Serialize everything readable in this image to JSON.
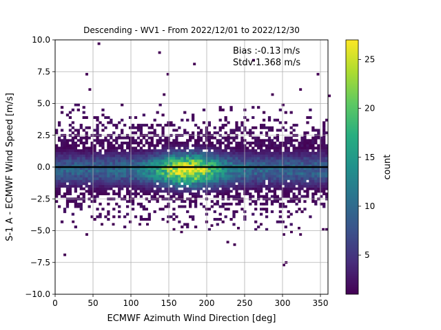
{
  "chart_data": {
    "type": "heatmap",
    "title": "Descending - WV1 - From 2022/12/01 to 2022/12/30",
    "xlabel": "ECMWF Azimuth Wind Direction [deg]",
    "ylabel": "S-1 A - ECMWF Wind Speed [m/s]",
    "xlim": [
      0,
      360
    ],
    "ylim": [
      -10,
      10
    ],
    "xticks": [
      "0",
      "50",
      "100",
      "150",
      "200",
      "250",
      "300",
      "350"
    ],
    "yticks": [
      "−10.0",
      "−7.5",
      "−5.0",
      "−2.5",
      "0.0",
      "2.5",
      "5.0",
      "7.5",
      "10.0"
    ],
    "grid": true,
    "colormap": "viridis",
    "colorbar": {
      "label": "count",
      "range": [
        1,
        27
      ],
      "ticks": [
        "5",
        "10",
        "15",
        "20",
        "25"
      ]
    },
    "reference_line": {
      "y": 0.0,
      "color": "#000000"
    },
    "annotation": {
      "line1": "Bias :-0.13 m/s",
      "line2": "Stdv:1.368 m/s"
    },
    "bin_size": {
      "x": 3.6,
      "y": 0.2
    },
    "density_peak": {
      "x": 175,
      "y": -0.2,
      "max_count": 27
    },
    "outliers": [
      {
        "x": 56,
        "y": 9.6
      },
      {
        "x": 136,
        "y": 8.9
      },
      {
        "x": 182,
        "y": 8.0
      },
      {
        "x": 260,
        "y": 8.3
      },
      {
        "x": 345,
        "y": 7.2
      },
      {
        "x": 40,
        "y": 7.2
      },
      {
        "x": 147,
        "y": 7.2
      },
      {
        "x": 142,
        "y": 5.6
      },
      {
        "x": 44,
        "y": 6.0
      },
      {
        "x": 322,
        "y": 6.0
      },
      {
        "x": 285,
        "y": 5.6
      },
      {
        "x": 360,
        "y": 5.5
      },
      {
        "x": 11,
        "y": -7.0
      },
      {
        "x": 303,
        "y": -7.6
      },
      {
        "x": 300,
        "y": -7.8
      },
      {
        "x": 226,
        "y": -6.0
      },
      {
        "x": 235,
        "y": -6.2
      },
      {
        "x": 40,
        "y": -5.4
      },
      {
        "x": 300,
        "y": -5.4
      },
      {
        "x": 22,
        "y": -4.4
      },
      {
        "x": 60,
        "y": -4.6
      },
      {
        "x": 75,
        "y": -4.6
      },
      {
        "x": 110,
        "y": -4.6
      },
      {
        "x": 120,
        "y": -4.6
      },
      {
        "x": 147,
        "y": -4.4
      },
      {
        "x": 155,
        "y": -5.0
      },
      {
        "x": 165,
        "y": -5.2
      },
      {
        "x": 205,
        "y": -4.7
      },
      {
        "x": 240,
        "y": -4.9
      },
      {
        "x": 270,
        "y": -4.6
      },
      {
        "x": 310,
        "y": -5.2
      },
      {
        "x": 322,
        "y": -5.4
      },
      {
        "x": 352,
        "y": -5.0
      },
      {
        "x": 320,
        "y": -4.9
      }
    ]
  }
}
